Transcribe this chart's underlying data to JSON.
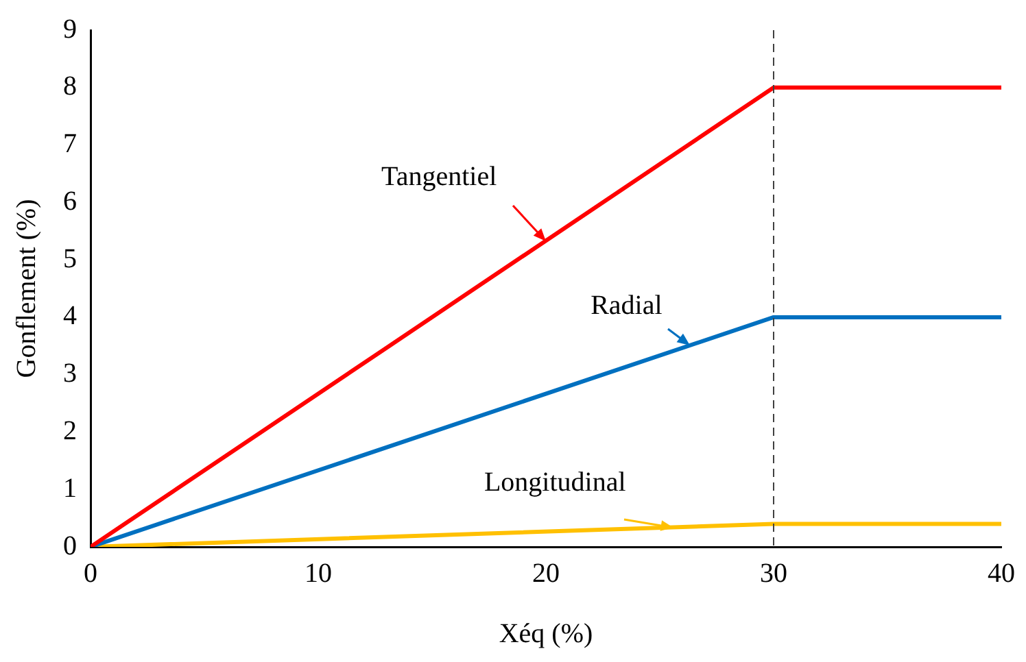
{
  "chart_data": {
    "type": "line",
    "xlabel": "Xéq (%)",
    "ylabel": "Gonflement (%)",
    "x": [
      0,
      30,
      40
    ],
    "series": [
      {
        "name": "Tangentiel",
        "color": "#ff0000",
        "values": [
          0,
          8,
          8
        ]
      },
      {
        "name": "Radial",
        "color": "#0070c0",
        "values": [
          0,
          4,
          4
        ]
      },
      {
        "name": "Longitudinal",
        "color": "#ffc000",
        "values": [
          0,
          0.4,
          0.4
        ]
      }
    ],
    "xlim": [
      0,
      40
    ],
    "xticks": [
      0,
      10,
      20,
      30,
      40
    ],
    "ylim": [
      0,
      9
    ],
    "yticks": [
      0,
      1,
      2,
      3,
      4,
      5,
      6,
      7,
      8,
      9
    ],
    "ref_lines": [
      {
        "axis": "x",
        "value": 30,
        "color": "#404040",
        "line_style": "dashed"
      }
    ],
    "grid": false,
    "legend": false,
    "marker": "none",
    "line_style": "solid"
  }
}
